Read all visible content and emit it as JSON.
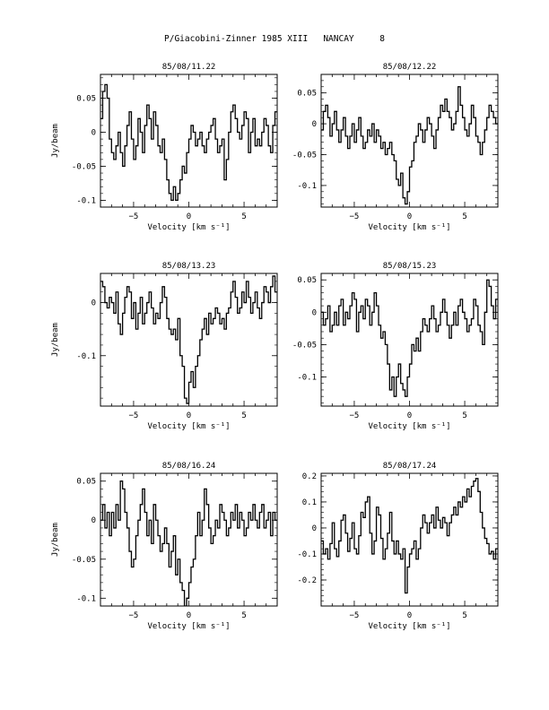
{
  "page": {
    "title": "P/Giacobini-Zinner 1985 XIII   NANCAY     8"
  },
  "chart_data": [
    {
      "type": "line",
      "title": "85/08/11.22",
      "xlabel": "Velocity [km s⁻¹]",
      "ylabel": "Jy/beam",
      "xlim": [
        -8,
        8
      ],
      "ylim": [
        -0.11,
        0.085
      ],
      "xticks": [
        -5,
        0,
        5
      ],
      "yticks": [
        0.05,
        0,
        -0.05,
        -0.1
      ],
      "ytick_labels": [
        "0.05",
        "0",
        "-0.05",
        "-0.1"
      ],
      "x": [
        -7.9,
        -7.7,
        -7.5,
        -7.3,
        -7.1,
        -6.9,
        -6.7,
        -6.5,
        -6.3,
        -6.1,
        -5.9,
        -5.7,
        -5.5,
        -5.3,
        -5.1,
        -4.9,
        -4.7,
        -4.5,
        -4.3,
        -4.1,
        -3.9,
        -3.7,
        -3.5,
        -3.3,
        -3.1,
        -2.9,
        -2.7,
        -2.5,
        -2.3,
        -2.1,
        -1.9,
        -1.7,
        -1.5,
        -1.3,
        -1.1,
        -0.9,
        -0.7,
        -0.5,
        -0.3,
        -0.1,
        0.1,
        0.3,
        0.5,
        0.7,
        0.9,
        1.1,
        1.3,
        1.5,
        1.7,
        1.9,
        2.1,
        2.3,
        2.5,
        2.7,
        2.9,
        3.1,
        3.3,
        3.5,
        3.7,
        3.9,
        4.1,
        4.3,
        4.5,
        4.7,
        4.9,
        5.1,
        5.3,
        5.5,
        5.7,
        5.9,
        6.1,
        6.3,
        6.5,
        6.7,
        6.9,
        7.1,
        7.3,
        7.5,
        7.7,
        7.9
      ],
      "values": [
        0.02,
        0.06,
        0.07,
        0.05,
        -0.01,
        -0.03,
        -0.04,
        -0.02,
        0.0,
        -0.03,
        -0.05,
        -0.02,
        0.01,
        0.03,
        -0.01,
        -0.04,
        -0.02,
        0.02,
        0.0,
        -0.03,
        0.01,
        0.04,
        0.02,
        -0.01,
        0.03,
        0.01,
        -0.02,
        -0.03,
        -0.01,
        -0.04,
        -0.07,
        -0.09,
        -0.1,
        -0.08,
        -0.1,
        -0.09,
        -0.07,
        -0.05,
        -0.06,
        -0.03,
        -0.01,
        0.01,
        0.0,
        -0.02,
        -0.01,
        0.0,
        -0.02,
        -0.03,
        -0.01,
        0.0,
        0.01,
        0.02,
        -0.01,
        -0.03,
        -0.02,
        -0.01,
        -0.07,
        -0.04,
        0.0,
        0.03,
        0.04,
        0.02,
        0.0,
        -0.01,
        0.01,
        0.03,
        0.02,
        -0.03,
        0.0,
        0.02,
        -0.02,
        -0.01,
        -0.02,
        0.0,
        0.02,
        0.01,
        -0.02,
        -0.03,
        0.01,
        0.03
      ]
    },
    {
      "type": "line",
      "title": "85/08/12.22",
      "xlabel": "Velocity [km s⁻¹]",
      "ylabel": "",
      "xlim": [
        -8,
        8
      ],
      "ylim": [
        -0.135,
        0.08
      ],
      "xticks": [
        -5,
        0,
        5
      ],
      "yticks": [
        0.05,
        0,
        -0.05,
        -0.1
      ],
      "ytick_labels": [
        "0.05",
        "0",
        "-0.05",
        "-0.1"
      ],
      "x": [
        -7.9,
        -7.7,
        -7.5,
        -7.3,
        -7.1,
        -6.9,
        -6.7,
        -6.5,
        -6.3,
        -6.1,
        -5.9,
        -5.7,
        -5.5,
        -5.3,
        -5.1,
        -4.9,
        -4.7,
        -4.5,
        -4.3,
        -4.1,
        -3.9,
        -3.7,
        -3.5,
        -3.3,
        -3.1,
        -2.9,
        -2.7,
        -2.5,
        -2.3,
        -2.1,
        -1.9,
        -1.7,
        -1.5,
        -1.3,
        -1.1,
        -0.9,
        -0.7,
        -0.5,
        -0.3,
        -0.1,
        0.1,
        0.3,
        0.5,
        0.7,
        0.9,
        1.1,
        1.3,
        1.5,
        1.7,
        1.9,
        2.1,
        2.3,
        2.5,
        2.7,
        2.9,
        3.1,
        3.3,
        3.5,
        3.7,
        3.9,
        4.1,
        4.3,
        4.5,
        4.7,
        4.9,
        5.1,
        5.3,
        5.5,
        5.7,
        5.9,
        6.1,
        6.3,
        6.5,
        6.7,
        6.9,
        7.1,
        7.3,
        7.5,
        7.7,
        7.9
      ],
      "values": [
        -0.01,
        0.02,
        0.03,
        0.01,
        -0.02,
        0.0,
        0.02,
        -0.01,
        -0.03,
        -0.01,
        0.01,
        -0.02,
        -0.04,
        -0.02,
        0.0,
        -0.03,
        -0.01,
        0.01,
        -0.02,
        -0.04,
        -0.03,
        -0.01,
        -0.02,
        0.0,
        -0.03,
        -0.01,
        -0.02,
        -0.04,
        -0.03,
        -0.05,
        -0.04,
        -0.03,
        -0.05,
        -0.06,
        -0.09,
        -0.1,
        -0.08,
        -0.12,
        -0.13,
        -0.11,
        -0.07,
        -0.06,
        -0.03,
        -0.02,
        0.0,
        -0.01,
        -0.03,
        -0.01,
        0.01,
        0.0,
        -0.02,
        -0.04,
        -0.01,
        0.01,
        0.03,
        0.02,
        0.04,
        0.02,
        0.01,
        -0.01,
        0.0,
        0.02,
        0.06,
        0.03,
        0.01,
        -0.01,
        -0.02,
        0.0,
        0.03,
        0.01,
        -0.02,
        -0.03,
        -0.05,
        -0.03,
        -0.01,
        0.01,
        0.03,
        0.02,
        0.01,
        0.0
      ]
    },
    {
      "type": "line",
      "title": "85/08/13.23",
      "xlabel": "Velocity [km s⁻¹]",
      "ylabel": "Jy/beam",
      "xlim": [
        -8,
        8
      ],
      "ylim": [
        -0.195,
        0.055
      ],
      "xticks": [
        -5,
        0,
        5
      ],
      "yticks": [
        0,
        -0.1
      ],
      "ytick_labels": [
        "0",
        "-0.1"
      ],
      "x": [
        -7.9,
        -7.7,
        -7.5,
        -7.3,
        -7.1,
        -6.9,
        -6.7,
        -6.5,
        -6.3,
        -6.1,
        -5.9,
        -5.7,
        -5.5,
        -5.3,
        -5.1,
        -4.9,
        -4.7,
        -4.5,
        -4.3,
        -4.1,
        -3.9,
        -3.7,
        -3.5,
        -3.3,
        -3.1,
        -2.9,
        -2.7,
        -2.5,
        -2.3,
        -2.1,
        -1.9,
        -1.7,
        -1.5,
        -1.3,
        -1.1,
        -0.9,
        -0.7,
        -0.5,
        -0.3,
        -0.1,
        0.1,
        0.3,
        0.5,
        0.7,
        0.9,
        1.1,
        1.3,
        1.5,
        1.7,
        1.9,
        2.1,
        2.3,
        2.5,
        2.7,
        2.9,
        3.1,
        3.3,
        3.5,
        3.7,
        3.9,
        4.1,
        4.3,
        4.5,
        4.7,
        4.9,
        5.1,
        5.3,
        5.5,
        5.7,
        5.9,
        6.1,
        6.3,
        6.5,
        6.7,
        6.9,
        7.1,
        7.3,
        7.5,
        7.7,
        7.9
      ],
      "values": [
        0.04,
        0.03,
        0.0,
        -0.01,
        0.01,
        0.0,
        -0.02,
        0.02,
        -0.04,
        -0.06,
        -0.02,
        0.01,
        0.03,
        0.02,
        -0.03,
        0.0,
        -0.05,
        -0.02,
        0.01,
        -0.04,
        -0.02,
        0.0,
        0.02,
        -0.01,
        -0.04,
        -0.02,
        -0.03,
        0.0,
        0.03,
        0.01,
        -0.03,
        -0.05,
        -0.06,
        -0.05,
        -0.07,
        -0.03,
        -0.1,
        -0.12,
        -0.18,
        -0.19,
        -0.15,
        -0.13,
        -0.16,
        -0.12,
        -0.1,
        -0.07,
        -0.05,
        -0.03,
        -0.06,
        -0.02,
        -0.04,
        -0.03,
        -0.01,
        -0.02,
        -0.04,
        -0.03,
        -0.05,
        -0.02,
        -0.01,
        0.02,
        0.04,
        0.01,
        -0.02,
        -0.01,
        0.02,
        0.0,
        0.04,
        0.01,
        -0.02,
        0.0,
        0.02,
        -0.01,
        -0.03,
        0.0,
        0.03,
        0.02,
        0.0,
        0.03,
        0.05,
        0.02
      ]
    },
    {
      "type": "line",
      "title": "85/08/15.23",
      "xlabel": "Velocity [km s⁻¹]",
      "ylabel": "",
      "xlim": [
        -8,
        8
      ],
      "ylim": [
        -0.145,
        0.06
      ],
      "xticks": [
        -5,
        0,
        5
      ],
      "yticks": [
        0.05,
        0,
        -0.05,
        -0.1
      ],
      "ytick_labels": [
        "0.05",
        "0",
        "-0.05",
        "-0.1"
      ],
      "x": [
        -7.9,
        -7.7,
        -7.5,
        -7.3,
        -7.1,
        -6.9,
        -6.7,
        -6.5,
        -6.3,
        -6.1,
        -5.9,
        -5.7,
        -5.5,
        -5.3,
        -5.1,
        -4.9,
        -4.7,
        -4.5,
        -4.3,
        -4.1,
        -3.9,
        -3.7,
        -3.5,
        -3.3,
        -3.1,
        -2.9,
        -2.7,
        -2.5,
        -2.3,
        -2.1,
        -1.9,
        -1.7,
        -1.5,
        -1.3,
        -1.1,
        -0.9,
        -0.7,
        -0.5,
        -0.3,
        -0.1,
        0.1,
        0.3,
        0.5,
        0.7,
        0.9,
        1.1,
        1.3,
        1.5,
        1.7,
        1.9,
        2.1,
        2.3,
        2.5,
        2.7,
        2.9,
        3.1,
        3.3,
        3.5,
        3.7,
        3.9,
        4.1,
        4.3,
        4.5,
        4.7,
        4.9,
        5.1,
        5.3,
        5.5,
        5.7,
        5.9,
        6.1,
        6.3,
        6.5,
        6.7,
        6.9,
        7.1,
        7.3,
        7.5,
        7.7,
        7.9
      ],
      "values": [
        0.0,
        -0.02,
        -0.01,
        0.01,
        -0.03,
        -0.02,
        0.0,
        -0.02,
        0.01,
        0.02,
        -0.02,
        0.0,
        -0.01,
        0.01,
        0.03,
        0.02,
        -0.03,
        0.0,
        0.01,
        -0.01,
        0.02,
        0.01,
        -0.02,
        0.0,
        0.03,
        0.01,
        -0.02,
        -0.04,
        -0.03,
        -0.05,
        -0.08,
        -0.12,
        -0.1,
        -0.13,
        -0.1,
        -0.08,
        -0.11,
        -0.12,
        -0.13,
        -0.1,
        -0.08,
        -0.05,
        -0.06,
        -0.04,
        -0.06,
        -0.03,
        -0.01,
        -0.02,
        -0.03,
        -0.01,
        0.01,
        -0.01,
        -0.03,
        -0.02,
        0.0,
        0.02,
        0.0,
        -0.02,
        -0.04,
        -0.02,
        0.0,
        -0.02,
        0.01,
        0.02,
        0.0,
        -0.01,
        -0.03,
        -0.02,
        -0.01,
        0.02,
        0.01,
        -0.02,
        -0.03,
        -0.05,
        0.0,
        0.05,
        0.04,
        0.01,
        -0.01,
        0.02
      ]
    },
    {
      "type": "line",
      "title": "85/08/16.24",
      "xlabel": "Velocity [km s⁻¹]",
      "ylabel": "Jy/beam",
      "xlim": [
        -8,
        8
      ],
      "ylim": [
        -0.11,
        0.06
      ],
      "xticks": [
        -5,
        0,
        5
      ],
      "yticks": [
        0.05,
        0,
        -0.05,
        -0.1
      ],
      "ytick_labels": [
        "0.05",
        "0",
        "-0.05",
        "-0.1"
      ],
      "x": [
        -7.9,
        -7.7,
        -7.5,
        -7.3,
        -7.1,
        -6.9,
        -6.7,
        -6.5,
        -6.3,
        -6.1,
        -5.9,
        -5.7,
        -5.5,
        -5.3,
        -5.1,
        -4.9,
        -4.7,
        -4.5,
        -4.3,
        -4.1,
        -3.9,
        -3.7,
        -3.5,
        -3.3,
        -3.1,
        -2.9,
        -2.7,
        -2.5,
        -2.3,
        -2.1,
        -1.9,
        -1.7,
        -1.5,
        -1.3,
        -1.1,
        -0.9,
        -0.7,
        -0.5,
        -0.3,
        -0.1,
        0.1,
        0.3,
        0.5,
        0.7,
        0.9,
        1.1,
        1.3,
        1.5,
        1.7,
        1.9,
        2.1,
        2.3,
        2.5,
        2.7,
        2.9,
        3.1,
        3.3,
        3.5,
        3.7,
        3.9,
        4.1,
        4.3,
        4.5,
        4.7,
        4.9,
        5.1,
        5.3,
        5.5,
        5.7,
        5.9,
        6.1,
        6.3,
        6.5,
        6.7,
        6.9,
        7.1,
        7.3,
        7.5,
        7.7,
        7.9
      ],
      "values": [
        0.0,
        0.02,
        -0.01,
        0.01,
        -0.02,
        0.01,
        -0.01,
        0.02,
        0.0,
        0.05,
        0.04,
        0.01,
        -0.01,
        -0.04,
        -0.06,
        -0.05,
        -0.02,
        0.0,
        0.02,
        0.04,
        0.01,
        -0.02,
        0.0,
        -0.03,
        0.02,
        0.0,
        -0.02,
        -0.04,
        -0.03,
        -0.01,
        -0.03,
        -0.06,
        -0.04,
        -0.02,
        -0.07,
        -0.05,
        -0.08,
        -0.09,
        -0.11,
        -0.1,
        -0.08,
        -0.06,
        -0.05,
        -0.02,
        0.01,
        -0.02,
        0.0,
        0.04,
        0.02,
        -0.01,
        -0.03,
        -0.02,
        0.0,
        -0.01,
        0.02,
        0.01,
        0.0,
        -0.02,
        -0.01,
        0.01,
        0.0,
        0.02,
        -0.01,
        0.01,
        0.0,
        -0.02,
        -0.01,
        0.01,
        0.0,
        0.02,
        0.0,
        -0.01,
        0.01,
        0.02,
        -0.01,
        0.0,
        0.01,
        -0.02,
        0.01,
        0.0
      ]
    },
    {
      "type": "line",
      "title": "85/08/17.24",
      "xlabel": "Velocity [km s⁻¹]",
      "ylabel": "",
      "xlim": [
        -8,
        8
      ],
      "ylim": [
        -0.3,
        0.21
      ],
      "xticks": [
        -5,
        0,
        5
      ],
      "yticks": [
        0.2,
        0.1,
        0,
        -0.1,
        -0.2
      ],
      "ytick_labels": [
        "0.2",
        "0.1",
        "0",
        "-0.1",
        "-0.2"
      ],
      "x": [
        -7.9,
        -7.7,
        -7.5,
        -7.3,
        -7.1,
        -6.9,
        -6.7,
        -6.5,
        -6.3,
        -6.1,
        -5.9,
        -5.7,
        -5.5,
        -5.3,
        -5.1,
        -4.9,
        -4.7,
        -4.5,
        -4.3,
        -4.1,
        -3.9,
        -3.7,
        -3.5,
        -3.3,
        -3.1,
        -2.9,
        -2.7,
        -2.5,
        -2.3,
        -2.1,
        -1.9,
        -1.7,
        -1.5,
        -1.3,
        -1.1,
        -0.9,
        -0.7,
        -0.5,
        -0.3,
        -0.1,
        0.1,
        0.3,
        0.5,
        0.7,
        0.9,
        1.1,
        1.3,
        1.5,
        1.7,
        1.9,
        2.1,
        2.3,
        2.5,
        2.7,
        2.9,
        3.1,
        3.3,
        3.5,
        3.7,
        3.9,
        4.1,
        4.3,
        4.5,
        4.7,
        4.9,
        5.1,
        5.3,
        5.5,
        5.7,
        5.9,
        6.1,
        6.3,
        6.5,
        6.7,
        6.9,
        7.1,
        7.3,
        7.5,
        7.7,
        7.9
      ],
      "values": [
        -0.05,
        -0.1,
        -0.08,
        -0.12,
        -0.06,
        0.02,
        -0.08,
        -0.11,
        -0.05,
        0.03,
        0.05,
        -0.02,
        -0.09,
        -0.04,
        0.02,
        -0.08,
        -0.1,
        -0.03,
        0.06,
        0.04,
        0.1,
        0.12,
        -0.02,
        -0.1,
        -0.05,
        0.08,
        0.05,
        -0.04,
        -0.12,
        -0.08,
        -0.02,
        0.06,
        -0.05,
        -0.1,
        -0.05,
        -0.1,
        -0.12,
        -0.08,
        -0.25,
        -0.15,
        -0.1,
        -0.08,
        -0.05,
        -0.12,
        -0.08,
        0.0,
        0.05,
        0.02,
        -0.02,
        0.02,
        0.05,
        0.0,
        0.08,
        0.03,
        0.0,
        0.04,
        0.02,
        -0.03,
        0.02,
        0.05,
        0.08,
        0.05,
        0.1,
        0.08,
        0.12,
        0.1,
        0.15,
        0.12,
        0.16,
        0.18,
        0.19,
        0.14,
        0.06,
        0.0,
        -0.04,
        -0.06,
        -0.1,
        -0.09,
        -0.12,
        -0.08
      ]
    }
  ]
}
